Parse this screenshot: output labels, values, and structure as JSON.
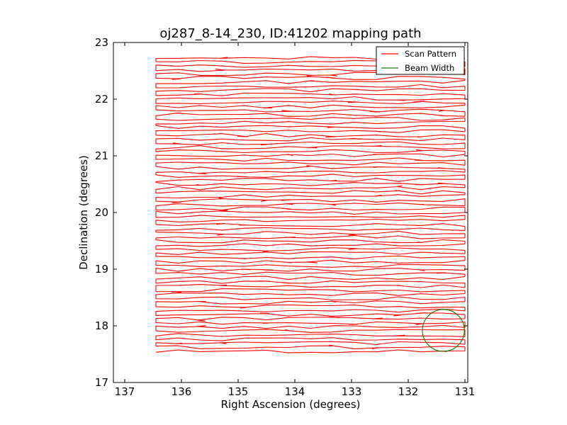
{
  "chart_data": {
    "type": "line",
    "title": "oj287_8-14_230, ID:41202 mapping path",
    "xlabel": "Right Ascension (degrees)",
    "ylabel": "Declination (degrees)",
    "xlim": [
      137.2,
      130.95
    ],
    "ylim": [
      17,
      23
    ],
    "x_inverted": true,
    "xticks": [
      "137",
      "136",
      "135",
      "134",
      "133",
      "132",
      "131"
    ],
    "yticks": [
      "17",
      "18",
      "19",
      "20",
      "21",
      "22",
      "23"
    ],
    "grid": false,
    "legend_placement": "top-right",
    "series": [
      {
        "name": "Scan Pattern",
        "color": "#ff0000",
        "pattern": "raster",
        "ra_range": [
          136.45,
          131.0
        ],
        "dec_start": 17.55,
        "dec_end": 22.72,
        "dec_step": 0.072,
        "dec_jitter": 0.03
      },
      {
        "name": "Beam Width",
        "color": "#008000",
        "shape": "circle",
        "center": [
          131.38,
          17.92
        ],
        "radius_ra": 0.37,
        "radius_dec": 0.37
      }
    ]
  }
}
